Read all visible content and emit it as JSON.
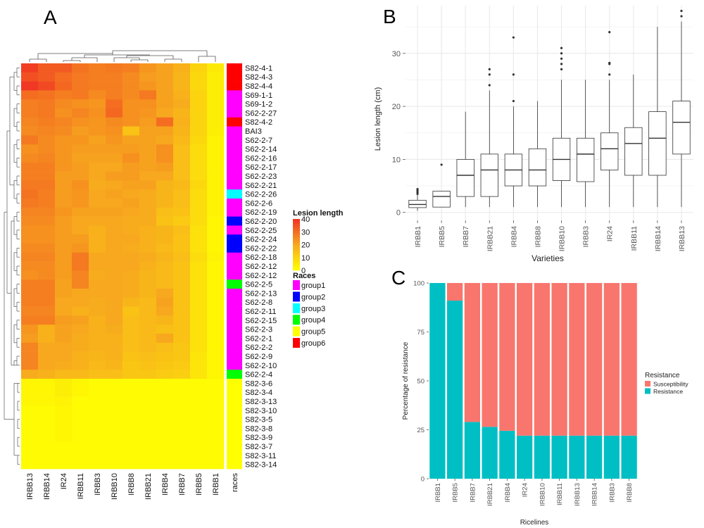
{
  "panels": {
    "a": "A",
    "b": "B",
    "c": "C"
  },
  "colors": {
    "heat_low": "#ffff00",
    "heat_mid": "#f7a81e",
    "heat_high": "#f03224",
    "box": "#333333",
    "grid": "#ebebeb",
    "susceptibility": "#f8766d",
    "resistance": "#00bfc4"
  },
  "chart_data": [
    {
      "type": "heatmap",
      "panel": "A",
      "columns": [
        "IRBB13",
        "IRBB14",
        "IR24",
        "IRBB11",
        "IRBB3",
        "IRBB10",
        "IRBB8",
        "IRBB21",
        "IRBB4",
        "IRBB7",
        "IRBB5",
        "IRBB1"
      ],
      "annotation_column": "races",
      "rows": [
        "S82-4-1",
        "S82-4-3",
        "S82-4-4",
        "S69-1-1",
        "S69-1-2",
        "S62-2-27",
        "S82-4-2",
        "BAI3",
        "S62-2-7",
        "S62-2-14",
        "S62-2-16",
        "S62-2-17",
        "S62-2-23",
        "S62-2-21",
        "S62-2-26",
        "S62-2-6",
        "S62-2-19",
        "S62-2-20",
        "S62-2-25",
        "S62-2-24",
        "S62-2-22",
        "S62-2-18",
        "S62-2-12",
        "S62-2-12",
        "S62-2-5",
        "S62-2-13",
        "S62-2-8",
        "S62-2-11",
        "S62-2-15",
        "S62-2-3",
        "S62-2-1",
        "S62-2-2",
        "S62-2-9",
        "S62-2-10",
        "S62-2-4",
        "S82-3-6",
        "S82-3-4",
        "S82-3-13",
        "S82-3-10",
        "S82-3-5",
        "S82-3-8",
        "S82-3-9",
        "S82-3-7",
        "S82-3-11",
        "S82-3-14"
      ],
      "row_races": [
        6,
        6,
        6,
        1,
        1,
        1,
        6,
        1,
        1,
        1,
        1,
        1,
        1,
        1,
        3,
        1,
        1,
        2,
        1,
        2,
        2,
        1,
        1,
        1,
        4,
        1,
        1,
        1,
        1,
        1,
        1,
        1,
        1,
        1,
        4,
        5,
        5,
        5,
        5,
        5,
        5,
        5,
        5,
        5,
        5
      ],
      "values": [
        [
          38,
          33,
          33,
          29,
          27,
          28,
          27,
          23,
          21,
          18,
          10,
          5
        ],
        [
          35,
          33,
          30,
          28,
          27,
          27,
          25,
          22,
          21,
          17,
          9,
          4
        ],
        [
          39,
          36,
          31,
          28,
          27,
          27,
          25,
          23,
          21,
          17,
          9,
          4
        ],
        [
          30,
          29,
          27,
          28,
          25,
          27,
          25,
          28,
          21,
          18,
          10,
          4
        ],
        [
          27,
          28,
          25,
          24,
          23,
          30,
          24,
          24,
          21,
          19,
          10,
          4
        ],
        [
          27,
          28,
          24,
          26,
          24,
          31,
          24,
          23,
          20,
          17,
          10,
          4
        ],
        [
          26,
          27,
          26,
          24,
          23,
          25,
          24,
          22,
          30,
          18,
          10,
          4
        ],
        [
          25,
          26,
          25,
          22,
          23,
          24,
          14,
          21,
          21,
          17,
          10,
          4
        ],
        [
          28,
          25,
          23,
          23,
          21,
          23,
          21,
          21,
          20,
          16,
          9,
          3
        ],
        [
          24,
          25,
          23,
          22,
          22,
          22,
          22,
          21,
          24,
          15,
          8,
          3
        ],
        [
          25,
          26,
          23,
          21,
          21,
          21,
          24,
          21,
          24,
          15,
          8,
          3
        ],
        [
          27,
          27,
          23,
          22,
          20,
          20,
          22,
          21,
          22,
          15,
          8,
          3
        ],
        [
          27,
          27,
          22,
          22,
          20,
          22,
          22,
          20,
          20,
          15,
          8,
          3
        ],
        [
          28,
          28,
          22,
          24,
          19,
          20,
          21,
          21,
          17,
          16,
          9,
          3
        ],
        [
          29,
          27,
          22,
          23,
          20,
          21,
          20,
          19,
          17,
          15,
          8,
          3
        ],
        [
          28,
          27,
          22,
          23,
          20,
          20,
          21,
          19,
          17,
          15,
          8,
          3
        ],
        [
          26,
          26,
          23,
          21,
          21,
          21,
          20,
          19,
          15,
          14,
          8,
          3
        ],
        [
          25,
          25,
          22,
          20,
          20,
          20,
          19,
          19,
          14,
          12,
          8,
          2
        ],
        [
          24,
          24,
          22,
          20,
          18,
          20,
          19,
          18,
          17,
          15,
          7,
          2
        ],
        [
          24,
          24,
          22,
          22,
          18,
          20,
          20,
          18,
          17,
          14,
          7,
          2
        ],
        [
          25,
          25,
          22,
          23,
          18,
          20,
          19,
          18,
          16,
          14,
          7,
          2
        ],
        [
          26,
          26,
          22,
          28,
          20,
          20,
          20,
          19,
          17,
          15,
          8,
          3
        ],
        [
          25,
          25,
          22,
          28,
          20,
          20,
          20,
          18,
          16,
          14,
          7,
          2
        ],
        [
          24,
          25,
          22,
          26,
          19,
          20,
          19,
          17,
          16,
          14,
          7,
          2
        ],
        [
          27,
          27,
          21,
          26,
          20,
          20,
          19,
          17,
          16,
          14,
          7,
          2
        ],
        [
          27,
          27,
          21,
          20,
          20,
          20,
          19,
          17,
          20,
          14,
          7,
          2
        ],
        [
          27,
          27,
          20,
          20,
          19,
          20,
          17,
          16,
          21,
          14,
          7,
          2
        ],
        [
          26,
          26,
          20,
          18,
          19,
          20,
          14,
          16,
          20,
          14,
          7,
          2
        ],
        [
          27,
          27,
          22,
          21,
          18,
          20,
          15,
          16,
          17,
          14,
          7,
          2
        ],
        [
          23,
          18,
          21,
          20,
          18,
          19,
          15,
          16,
          15,
          14,
          7,
          2
        ],
        [
          22,
          18,
          21,
          19,
          18,
          18,
          15,
          16,
          20,
          14,
          7,
          2
        ],
        [
          26,
          20,
          20,
          19,
          18,
          18,
          15,
          16,
          15,
          13,
          7,
          2
        ],
        [
          26,
          20,
          20,
          18,
          17,
          18,
          14,
          15,
          14,
          13,
          6,
          2
        ],
        [
          26,
          20,
          19,
          18,
          16,
          17,
          13,
          14,
          13,
          12,
          6,
          2
        ],
        [
          19,
          18,
          16,
          16,
          15,
          15,
          13,
          13,
          12,
          11,
          6,
          2
        ],
        [
          2,
          2,
          4,
          2,
          1,
          1,
          1,
          1,
          1,
          1,
          1,
          1
        ],
        [
          2,
          2,
          4,
          2,
          1,
          1,
          1,
          1,
          1,
          1,
          1,
          1
        ],
        [
          2,
          2,
          3,
          1,
          1,
          1,
          1,
          1,
          1,
          1,
          1,
          1
        ],
        [
          1,
          1,
          2,
          1,
          1,
          1,
          1,
          1,
          1,
          1,
          1,
          1
        ],
        [
          1,
          1,
          2,
          1,
          1,
          1,
          1,
          1,
          1,
          1,
          1,
          1
        ],
        [
          1,
          1,
          2,
          1,
          1,
          1,
          1,
          1,
          1,
          1,
          1,
          1
        ],
        [
          1,
          1,
          2,
          1,
          1,
          1,
          1,
          1,
          1,
          1,
          1,
          1
        ],
        [
          1,
          1,
          1,
          1,
          1,
          1,
          1,
          1,
          1,
          1,
          1,
          1
        ],
        [
          1,
          1,
          1,
          1,
          1,
          1,
          1,
          1,
          1,
          1,
          1,
          1
        ],
        [
          1,
          1,
          1,
          1,
          1,
          1,
          1,
          1,
          1,
          1,
          1,
          1
        ]
      ],
      "legend": {
        "title": "Lesion length",
        "ticks": [
          40,
          30,
          20,
          10,
          0
        ],
        "range": [
          0,
          40
        ],
        "races_title": "Races",
        "races": [
          {
            "name": "group1",
            "color": "#ff00ff"
          },
          {
            "name": "group2",
            "color": "#0000ff"
          },
          {
            "name": "group3",
            "color": "#00ffff"
          },
          {
            "name": "group4",
            "color": "#00ff00"
          },
          {
            "name": "group5",
            "color": "#ffff00"
          },
          {
            "name": "group6",
            "color": "#ff0000"
          }
        ]
      }
    },
    {
      "type": "box",
      "panel": "B",
      "categories": [
        "IRBB1",
        "IRBB5",
        "IRBB7",
        "IRBB21",
        "IRBB4",
        "IRBB8",
        "IRBB10",
        "IRBB3",
        "IR24",
        "IRBB11",
        "IRBB14",
        "IRBB13"
      ],
      "boxes": [
        {
          "min": 0.3,
          "q1": 0.9,
          "median": 1.5,
          "q3": 2.3,
          "max": 3.3,
          "outliers": [
            3.5,
            3.8,
            4.1,
            4.4
          ]
        },
        {
          "min": 1,
          "q1": 1,
          "median": 3,
          "q3": 4,
          "max": 4,
          "outliers": [
            9
          ]
        },
        {
          "min": 1,
          "q1": 3,
          "median": 7,
          "q3": 10,
          "max": 19,
          "outliers": []
        },
        {
          "min": 1,
          "q1": 3,
          "median": 8,
          "q3": 11,
          "max": 23,
          "outliers": [
            24,
            26,
            27
          ]
        },
        {
          "min": 1,
          "q1": 5,
          "median": 8,
          "q3": 11,
          "max": 20,
          "outliers": [
            21,
            26,
            33
          ]
        },
        {
          "min": 1,
          "q1": 5,
          "median": 8,
          "q3": 12,
          "max": 21,
          "outliers": []
        },
        {
          "min": 1,
          "q1": 6,
          "median": 10,
          "q3": 14,
          "max": 25,
          "outliers": [
            27,
            28,
            29,
            30,
            31
          ]
        },
        {
          "min": 1,
          "q1": 5.8,
          "median": 11,
          "q3": 14,
          "max": 25,
          "outliers": []
        },
        {
          "min": 1,
          "q1": 8,
          "median": 12,
          "q3": 15,
          "max": 25,
          "outliers": [
            26,
            28,
            28.2,
            34
          ]
        },
        {
          "min": 1,
          "q1": 7,
          "median": 13,
          "q3": 16,
          "max": 26,
          "outliers": []
        },
        {
          "min": 1,
          "q1": 7,
          "median": 14,
          "q3": 19,
          "max": 35,
          "outliers": []
        },
        {
          "min": 1,
          "q1": 11,
          "median": 17,
          "q3": 21,
          "max": 36,
          "outliers": [
            37,
            38
          ]
        }
      ],
      "xlabel": "Varieties",
      "ylabel": "Lesion length (cm)",
      "yticks": [
        0,
        10,
        20,
        30
      ],
      "ylim": [
        -1.5,
        39
      ],
      "grid": true
    },
    {
      "type": "bar",
      "stacked": true,
      "panel": "C",
      "categories": [
        "IRBB1",
        "IRBB5",
        "IRBB7",
        "IRBB21",
        "IRBB4",
        "IR24",
        "IRBB10",
        "IRBB11",
        "IRBB13",
        "IRBB14",
        "IRBB3",
        "IRBB8"
      ],
      "series": [
        {
          "name": "Resistance",
          "values": [
            100,
            91,
            29,
            26.5,
            24.5,
            22,
            22,
            22,
            22,
            22,
            22,
            22
          ]
        },
        {
          "name": "Susceptibility",
          "values": [
            0,
            9,
            71,
            73.5,
            75.5,
            78,
            78,
            78,
            78,
            78,
            78,
            78
          ]
        }
      ],
      "xlabel": "Ricelines",
      "ylabel": "Percentage of resistance",
      "yticks": [
        0,
        25,
        50,
        75,
        100
      ],
      "ylim": [
        0,
        100
      ],
      "legend": {
        "title": "Resistance",
        "position": "right",
        "entries": [
          "Susceptibility",
          "Resistance"
        ]
      }
    }
  ]
}
